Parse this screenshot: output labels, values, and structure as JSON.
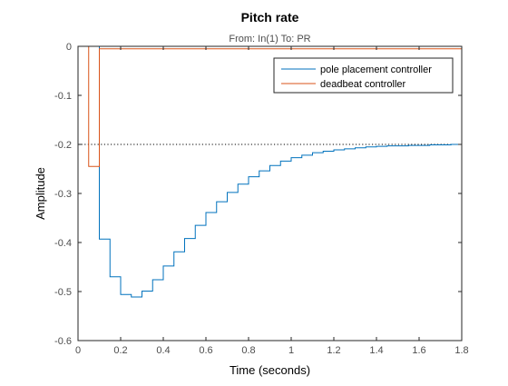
{
  "chart_data": {
    "type": "line",
    "title": "Pitch rate",
    "subtitle": "From: In(1)  To: PR",
    "xlabel": "Time (seconds)",
    "ylabel": "Amplitude",
    "xlim": [
      0,
      1.8
    ],
    "ylim": [
      -0.6,
      0
    ],
    "x_ticks": [
      "0",
      "0.2",
      "0.4",
      "0.6",
      "0.8",
      "1",
      "1.2",
      "1.4",
      "1.6",
      "1.8"
    ],
    "y_ticks": [
      "0",
      "-0.1",
      "-0.2",
      "-0.3",
      "-0.4",
      "-0.5",
      "-0.6"
    ],
    "grid": false,
    "legend_position": "top-right",
    "reference_lines": [
      {
        "orientation": "horizontal",
        "y": 0,
        "x_range": [
          0,
          0.05
        ],
        "style": "dotted"
      },
      {
        "orientation": "horizontal",
        "y": -0.2,
        "x_range": [
          0,
          1.8
        ],
        "style": "dotted"
      }
    ],
    "series": [
      {
        "name": "pole placement controller",
        "color": "#0072BD",
        "step": true,
        "x": [
          0,
          0.05,
          0.1,
          0.15,
          0.2,
          0.25,
          0.3,
          0.35,
          0.4,
          0.45,
          0.5,
          0.55,
          0.6,
          0.65,
          0.7,
          0.75,
          0.8,
          0.85,
          0.9,
          0.95,
          1.0,
          1.05,
          1.1,
          1.15,
          1.2,
          1.25,
          1.3,
          1.35,
          1.4,
          1.45,
          1.5,
          1.55,
          1.6,
          1.65,
          1.7,
          1.75,
          1.8
        ],
        "y": [
          0,
          0,
          -0.393,
          -0.47,
          -0.506,
          -0.511,
          -0.499,
          -0.476,
          -0.448,
          -0.419,
          -0.392,
          -0.365,
          -0.339,
          -0.317,
          -0.298,
          -0.281,
          -0.266,
          -0.254,
          -0.243,
          -0.234,
          -0.227,
          -0.222,
          -0.217,
          -0.214,
          -0.211,
          -0.209,
          -0.207,
          -0.205,
          -0.204,
          -0.203,
          -0.203,
          -0.202,
          -0.202,
          -0.201,
          -0.201,
          -0.2,
          -0.2
        ]
      },
      {
        "name": "deadbeat controller",
        "color": "#D95319",
        "step": true,
        "x": [
          0,
          0.05,
          0.1,
          1.8
        ],
        "y": [
          0,
          -0.245,
          -0.005,
          -0.005
        ]
      }
    ]
  }
}
